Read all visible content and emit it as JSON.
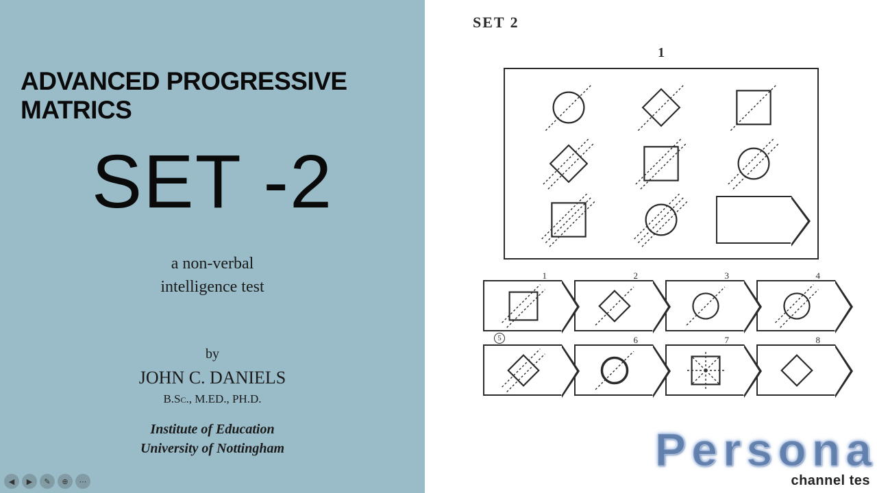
{
  "left": {
    "title_main": "ADVANCED PROGRESSIVE MATRICS",
    "title_set": "SET -2",
    "subtitle_line1": "a non-verbal",
    "subtitle_line2": "intelligence test",
    "by": "by",
    "author": "JOHN C. DANIELS",
    "credentials": "B.Sc., M.ED., PH.D.",
    "institution_line1": "Institute of Education",
    "institution_line2": "University of Nottingham",
    "bg_color": "#9abcc9",
    "text_color": "#0a0a0a"
  },
  "right": {
    "set_label": "SET 2",
    "problem_num": "1",
    "stroke": "#2a2a2a",
    "dash": "3,3",
    "matrix": [
      {
        "shape": "circle",
        "rot": 0,
        "lines": 1
      },
      {
        "shape": "diamond",
        "rot": 0,
        "lines": 1
      },
      {
        "shape": "square",
        "rot": 0,
        "lines": 1
      },
      {
        "shape": "diamond",
        "rot": 0,
        "lines": 2
      },
      {
        "shape": "square",
        "rot": 0,
        "lines": 2
      },
      {
        "shape": "circle",
        "rot": 0,
        "lines": 2
      },
      {
        "shape": "square",
        "rot": 0,
        "lines": 3
      },
      {
        "shape": "circle",
        "rot": 0,
        "lines": 3
      },
      {
        "shape": "blank"
      }
    ],
    "answers": [
      {
        "num": "1",
        "shape": "square",
        "lines": 2
      },
      {
        "num": "2",
        "shape": "diamond",
        "lines": 1
      },
      {
        "num": "3",
        "shape": "circle",
        "lines": 1
      },
      {
        "num": "4",
        "shape": "circle",
        "lines": 2
      },
      {
        "num": "5",
        "shape": "diamond",
        "lines": 2,
        "circled": true
      },
      {
        "num": "6",
        "shape": "circle",
        "lines": 1,
        "bold": true
      },
      {
        "num": "7",
        "shape": "square",
        "lines": 4,
        "star": true
      },
      {
        "num": "8",
        "shape": "diamond",
        "lines": 0
      }
    ]
  },
  "watermark": {
    "main": "Persona",
    "sub": "channel tes"
  },
  "controls": [
    "◀",
    "▶",
    "✎",
    "⊕",
    "⋯"
  ]
}
